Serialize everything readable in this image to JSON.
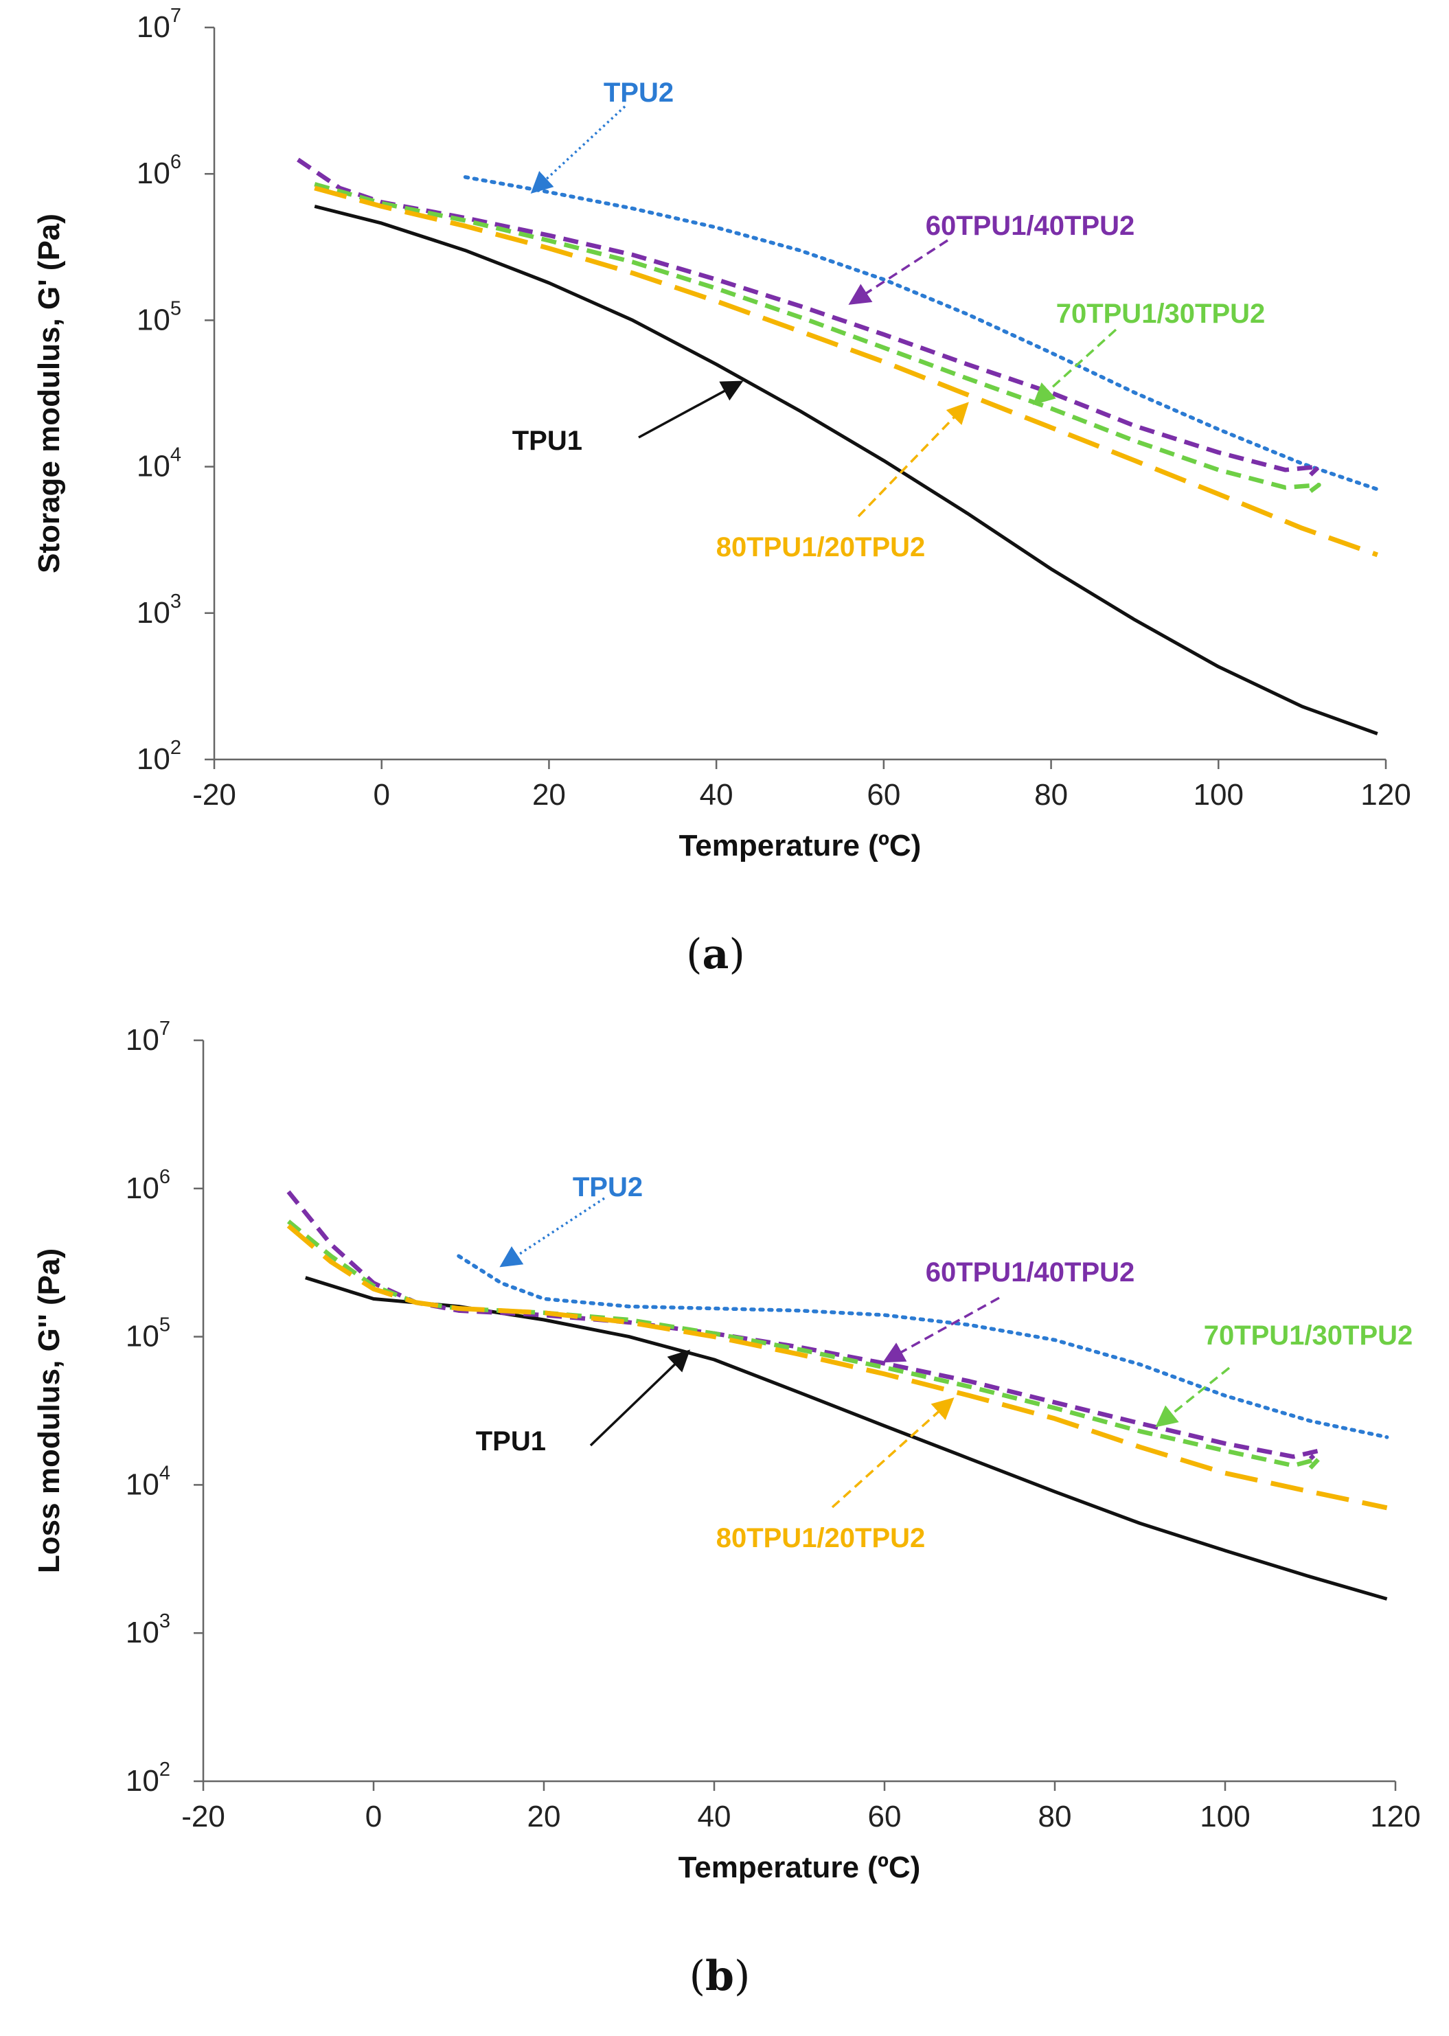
{
  "colors": {
    "TPU1": "#111111",
    "TPU2": "#2b7bd3",
    "60TPU1/40TPU2": "#7b2fa8",
    "70TPU1/30TPU2": "#6ecf45",
    "80TPU1/20TPU2": "#f5b400"
  },
  "chart_data": [
    {
      "panel_label": "a",
      "type": "line",
      "title": "",
      "xlabel": "Temperature (ºC)",
      "ylabel": "Storage modulus, G' (Pa)",
      "xlim": [
        -20,
        120
      ],
      "xticks": [
        -20,
        0,
        20,
        40,
        60,
        80,
        100,
        120
      ],
      "ylim": [
        100,
        10000000
      ],
      "yscale": "log",
      "ytick_exponents": [
        2,
        3,
        4,
        5,
        6,
        7
      ],
      "ytick_base": "10",
      "grid": false,
      "legend": "inline annotations with arrows",
      "series": [
        {
          "name": "TPU1",
          "style": "solid",
          "x": [
            -8,
            0,
            10,
            20,
            30,
            40,
            50,
            60,
            70,
            80,
            90,
            100,
            110,
            119
          ],
          "y": [
            600000,
            460000,
            300000,
            180000,
            100000,
            50000,
            24000,
            11000,
            4800,
            2000,
            900,
            430,
            230,
            150
          ]
        },
        {
          "name": "TPU2",
          "style": "dotted",
          "x": [
            10,
            20,
            30,
            40,
            50,
            60,
            70,
            80,
            90,
            100,
            110,
            119
          ],
          "y": [
            950000,
            750000,
            580000,
            430000,
            300000,
            190000,
            110000,
            60000,
            32000,
            18000,
            10500,
            7000
          ]
        },
        {
          "name": "60TPU1/40TPU2",
          "style": "dashed",
          "x": [
            -10,
            -5,
            0,
            10,
            20,
            30,
            40,
            50,
            60,
            70,
            80,
            90,
            100,
            108,
            112,
            111
          ],
          "y": [
            1250000,
            800000,
            640000,
            500000,
            380000,
            280000,
            190000,
            125000,
            80000,
            50000,
            32000,
            19000,
            12500,
            9500,
            10000,
            8800
          ]
        },
        {
          "name": "70TPU1/30TPU2",
          "style": "dashed",
          "x": [
            -8,
            0,
            10,
            20,
            30,
            40,
            50,
            60,
            70,
            80,
            90,
            100,
            108,
            112,
            111
          ],
          "y": [
            850000,
            630000,
            480000,
            350000,
            250000,
            165000,
            105000,
            65000,
            40000,
            25000,
            15000,
            9500,
            7200,
            7500,
            6800
          ]
        },
        {
          "name": "80TPU1/20TPU2",
          "style": "long-dashed",
          "x": [
            -8,
            0,
            10,
            20,
            30,
            40,
            50,
            60,
            70,
            80,
            90,
            100,
            110,
            119
          ],
          "y": [
            800000,
            600000,
            440000,
            310000,
            210000,
            135000,
            84000,
            52000,
            31000,
            18500,
            11000,
            6500,
            3800,
            2500
          ]
        }
      ],
      "annotations": [
        {
          "text": "TPU2",
          "series": "TPU2",
          "arrow_to": [
            18,
            750000
          ]
        },
        {
          "text": "60TPU1/40TPU2",
          "series": "60TPU1/40TPU2",
          "arrow_to": [
            56,
            130000
          ]
        },
        {
          "text": "70TPU1/30TPU2",
          "series": "70TPU1/30TPU2",
          "arrow_to": [
            78,
            27000
          ]
        },
        {
          "text": "TPU1",
          "series": "TPU1",
          "arrow_to": [
            43,
            38000
          ]
        },
        {
          "text": "80TPU1/20TPU2",
          "series": "80TPU1/20TPU2",
          "arrow_to": [
            70,
            27000
          ]
        }
      ]
    },
    {
      "panel_label": "b",
      "type": "line",
      "title": "",
      "xlabel": "Temperature (ºC)",
      "ylabel": "Loss modulus, G'' (Pa)",
      "xlim": [
        -20,
        120
      ],
      "xticks": [
        -20,
        0,
        20,
        40,
        60,
        80,
        100,
        120
      ],
      "ylim": [
        100,
        10000000
      ],
      "yscale": "log",
      "ytick_exponents": [
        2,
        3,
        4,
        5,
        6,
        7
      ],
      "ytick_base": "10",
      "grid": false,
      "legend": "inline annotations with arrows",
      "series": [
        {
          "name": "TPU1",
          "style": "solid",
          "x": [
            -8,
            0,
            10,
            20,
            30,
            40,
            50,
            60,
            70,
            80,
            90,
            100,
            110,
            119
          ],
          "y": [
            250000,
            180000,
            160000,
            130000,
            100000,
            70000,
            42000,
            25000,
            15000,
            9000,
            5500,
            3600,
            2400,
            1700
          ]
        },
        {
          "name": "TPU2",
          "style": "dotted",
          "x": [
            10,
            15,
            20,
            30,
            40,
            50,
            60,
            70,
            80,
            90,
            100,
            110,
            119
          ],
          "y": [
            350000,
            230000,
            180000,
            160000,
            155000,
            150000,
            140000,
            120000,
            95000,
            65000,
            40000,
            27000,
            21000
          ]
        },
        {
          "name": "60TPU1/40TPU2",
          "style": "dashed",
          "x": [
            -10,
            -5,
            0,
            5,
            10,
            20,
            30,
            40,
            50,
            60,
            70,
            80,
            90,
            100,
            108,
            111,
            110
          ],
          "y": [
            950000,
            420000,
            230000,
            170000,
            150000,
            140000,
            125000,
            105000,
            85000,
            66000,
            50000,
            36000,
            26000,
            19000,
            15500,
            17000,
            15000
          ]
        },
        {
          "name": "70TPU1/30TPU2",
          "style": "dashed",
          "x": [
            -10,
            -5,
            0,
            5,
            10,
            20,
            30,
            40,
            50,
            60,
            70,
            80,
            90,
            100,
            108,
            111,
            110
          ],
          "y": [
            600000,
            350000,
            220000,
            170000,
            155000,
            145000,
            130000,
            105000,
            82000,
            62000,
            46000,
            33000,
            23000,
            17000,
            13500,
            15000,
            13000
          ]
        },
        {
          "name": "80TPU1/20TPU2",
          "style": "long-dashed",
          "x": [
            -10,
            -5,
            0,
            5,
            10,
            20,
            30,
            40,
            50,
            60,
            70,
            80,
            90,
            100,
            110,
            119
          ],
          "y": [
            560000,
            320000,
            210000,
            170000,
            155000,
            145000,
            125000,
            100000,
            76000,
            56000,
            40000,
            28000,
            18000,
            12000,
            9000,
            7000
          ]
        }
      ],
      "annotations": [
        {
          "text": "TPU2",
          "series": "TPU2",
          "arrow_to": [
            15,
            300000
          ]
        },
        {
          "text": "60TPU1/40TPU2",
          "series": "60TPU1/40TPU2",
          "arrow_to": [
            60,
            68000
          ]
        },
        {
          "text": "70TPU1/30TPU2",
          "series": "70TPU1/30TPU2",
          "arrow_to": [
            92,
            25000
          ]
        },
        {
          "text": "TPU1",
          "series": "TPU1",
          "arrow_to": [
            37,
            80000
          ]
        },
        {
          "text": "80TPU1/20TPU2",
          "series": "80TPU1/20TPU2",
          "arrow_to": [
            68,
            38000
          ]
        }
      ]
    }
  ]
}
